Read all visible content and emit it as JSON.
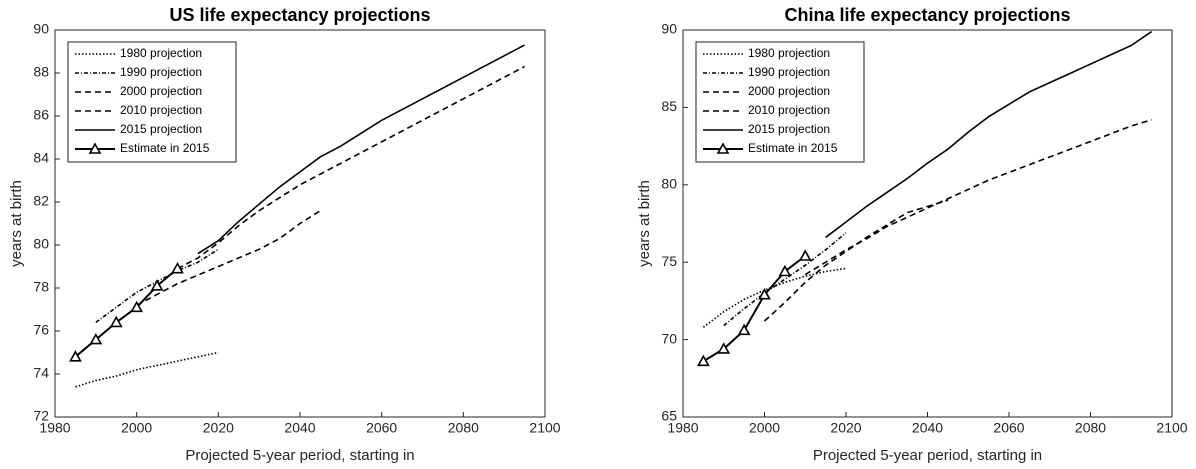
{
  "chart_data": [
    {
      "type": "line",
      "title": "US life expectancy projections",
      "x_label": "Projected 5-year period, starting in",
      "y_label": "years at birth",
      "xlim": [
        1980,
        2100
      ],
      "xticks": [
        1980,
        2000,
        2020,
        2040,
        2060,
        2080,
        2100
      ],
      "ylim": [
        72,
        90
      ],
      "yticks": [
        72,
        74,
        76,
        78,
        80,
        82,
        84,
        86,
        88,
        90
      ],
      "legend": "upper left",
      "series": [
        {
          "name": "1980 projection",
          "color": "#000000",
          "dash": "1.5 2",
          "x": [
            1985,
            1990,
            1995,
            2000,
            2005,
            2010,
            2015,
            2020
          ],
          "values": [
            73.4,
            73.7,
            73.9,
            74.2,
            74.4,
            74.6,
            74.8,
            75.0
          ]
        },
        {
          "name": "1990 projection",
          "color": "#000000",
          "dash": "4 2 1 2",
          "x": [
            1990,
            1995,
            2000,
            2005,
            2010,
            2015,
            2020
          ],
          "values": [
            76.4,
            77.1,
            77.8,
            78.3,
            78.8,
            79.2,
            79.8
          ]
        },
        {
          "name": "2000 projection",
          "color": "#000000",
          "dash": "6 4",
          "x": [
            2000,
            2005,
            2010,
            2015,
            2020,
            2025,
            2030,
            2035,
            2040,
            2045
          ],
          "values": [
            77.2,
            77.7,
            78.2,
            78.6,
            79.0,
            79.4,
            79.8,
            80.3,
            81.0,
            81.6
          ]
        },
        {
          "name": "2010 projection",
          "color": "#000000",
          "dash": "6 4",
          "x": [
            2010,
            2015,
            2020,
            2025,
            2030,
            2035,
            2040,
            2045,
            2050,
            2055,
            2060,
            2065,
            2070,
            2075,
            2080,
            2085,
            2090,
            2095
          ],
          "values": [
            78.9,
            79.4,
            80.1,
            80.9,
            81.6,
            82.2,
            82.8,
            83.3,
            83.8,
            84.3,
            84.8,
            85.3,
            85.8,
            86.3,
            86.8,
            87.3,
            87.8,
            88.3
          ]
        },
        {
          "name": "2015 projection",
          "color": "#000000",
          "dash": "none",
          "x": [
            2015,
            2020,
            2025,
            2030,
            2035,
            2040,
            2045,
            2050,
            2055,
            2060,
            2065,
            2070,
            2075,
            2080,
            2085,
            2090,
            2095
          ],
          "values": [
            79.6,
            80.2,
            81.1,
            81.9,
            82.7,
            83.4,
            84.1,
            84.6,
            85.2,
            85.8,
            86.3,
            86.8,
            87.3,
            87.8,
            88.3,
            88.8,
            89.3
          ]
        },
        {
          "name": "Estimate in 2015",
          "color": "#000000",
          "dash": "none",
          "marker": "triangle",
          "x": [
            1985,
            1990,
            1995,
            2000,
            2005,
            2010
          ],
          "values": [
            74.8,
            75.6,
            76.4,
            77.1,
            78.1,
            78.9
          ]
        }
      ]
    },
    {
      "type": "line",
      "title": "China life expectancy projections",
      "x_label": "Projected 5-year period, starting in",
      "y_label": "years at birth",
      "xlim": [
        1980,
        2100
      ],
      "xticks": [
        1980,
        2000,
        2020,
        2040,
        2060,
        2080,
        2100
      ],
      "ylim": [
        65,
        90
      ],
      "yticks": [
        65,
        70,
        75,
        80,
        85,
        90
      ],
      "legend": "upper left",
      "series": [
        {
          "name": "1980 projection",
          "color": "#000000",
          "dash": "1.5 2",
          "x": [
            1985,
            1990,
            1995,
            2000,
            2005,
            2010,
            2015,
            2020
          ],
          "values": [
            70.8,
            71.8,
            72.6,
            73.2,
            73.7,
            74.1,
            74.4,
            74.6
          ]
        },
        {
          "name": "1990 projection",
          "color": "#000000",
          "dash": "4 2 1 2",
          "x": [
            1990,
            1995,
            2000,
            2005,
            2010,
            2015,
            2020
          ],
          "values": [
            70.9,
            72.0,
            73.0,
            73.9,
            74.8,
            75.8,
            76.9
          ]
        },
        {
          "name": "2000 projection",
          "color": "#000000",
          "dash": "6 4",
          "x": [
            2000,
            2005,
            2010,
            2015,
            2020,
            2025,
            2030,
            2035,
            2040,
            2045
          ],
          "values": [
            71.2,
            72.4,
            73.7,
            74.8,
            75.7,
            76.6,
            77.4,
            78.2,
            78.6,
            79.0
          ]
        },
        {
          "name": "2010 projection",
          "color": "#000000",
          "dash": "6 4",
          "x": [
            2010,
            2015,
            2020,
            2025,
            2030,
            2035,
            2040,
            2045,
            2050,
            2055,
            2060,
            2065,
            2070,
            2075,
            2080,
            2085,
            2090,
            2095
          ],
          "values": [
            74.2,
            75.0,
            75.8,
            76.5,
            77.3,
            77.9,
            78.5,
            79.1,
            79.7,
            80.3,
            80.8,
            81.3,
            81.8,
            82.3,
            82.8,
            83.3,
            83.8,
            84.2
          ]
        },
        {
          "name": "2015 projection",
          "color": "#000000",
          "dash": "none",
          "x": [
            2015,
            2020,
            2025,
            2030,
            2035,
            2040,
            2045,
            2050,
            2055,
            2060,
            2065,
            2070,
            2075,
            2080,
            2085,
            2090,
            2095
          ],
          "values": [
            76.6,
            77.6,
            78.6,
            79.5,
            80.4,
            81.4,
            82.3,
            83.4,
            84.4,
            85.2,
            86.0,
            86.6,
            87.2,
            87.8,
            88.4,
            89.0,
            89.9
          ]
        },
        {
          "name": "Estimate in 2015",
          "color": "#000000",
          "dash": "none",
          "marker": "triangle",
          "x": [
            1985,
            1990,
            1995,
            2000,
            2005,
            2010
          ],
          "values": [
            68.6,
            69.4,
            70.6,
            72.9,
            74.4,
            75.4
          ]
        }
      ]
    }
  ]
}
